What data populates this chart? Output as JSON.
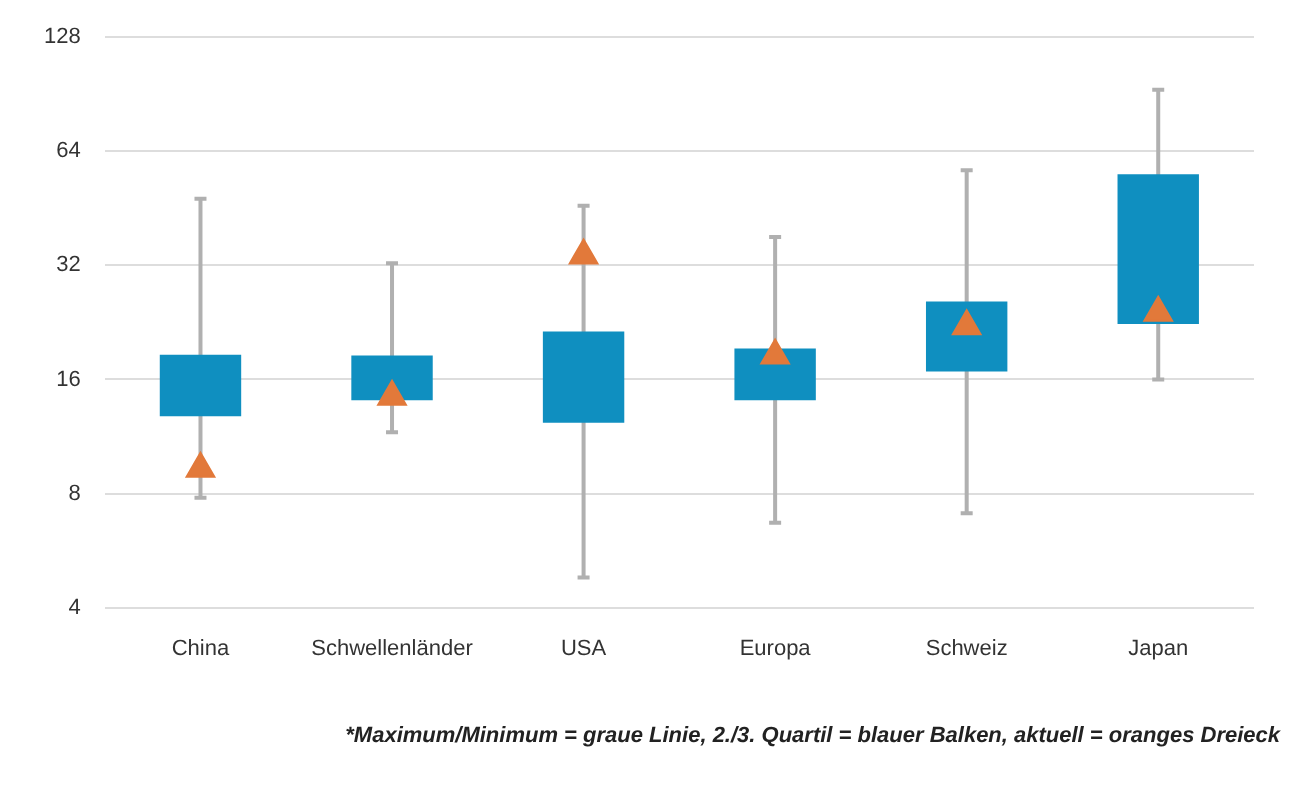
{
  "chart_data": {
    "type": "box",
    "categories": [
      "China",
      "Schwellenländer",
      "USA",
      "Europa",
      "Schweiz",
      "Japan"
    ],
    "series": [
      {
        "type": "box",
        "color": "#0f8fc0",
        "boxes": [
          {
            "low": 7.8,
            "q1": 12.8,
            "q3": 18.6,
            "high": 48
          },
          {
            "low": 11.6,
            "q1": 14.1,
            "q3": 18.5,
            "high": 32.4
          },
          {
            "low": 4.8,
            "q1": 12.3,
            "q3": 21.4,
            "high": 46
          },
          {
            "low": 6.7,
            "q1": 14.1,
            "q3": 19.3,
            "high": 38
          },
          {
            "low": 7.1,
            "q1": 16.8,
            "q3": 25.7,
            "high": 57
          },
          {
            "low": 16,
            "q1": 22.4,
            "q3": 55.7,
            "high": 93
          }
        ]
      },
      {
        "type": "scatter",
        "color": "#e2793a",
        "x": [
          "China",
          "Schwellenländer",
          "USA",
          "Europa",
          "Schweiz",
          "Japan"
        ],
        "values": [
          9.3,
          14.4,
          34,
          18.5,
          22.1,
          24
        ]
      }
    ],
    "log": true,
    "ylim": [
      4,
      128
    ],
    "yticks": [
      4,
      8,
      16,
      32,
      64,
      128
    ],
    "grid": "y",
    "marker": "triangle",
    "legend": false,
    "annotations": [
      "*Maximum/Minimum = graue Linie, 2./3. Quartil = blauer Balken, aktuell = oranges Dreieck"
    ]
  }
}
